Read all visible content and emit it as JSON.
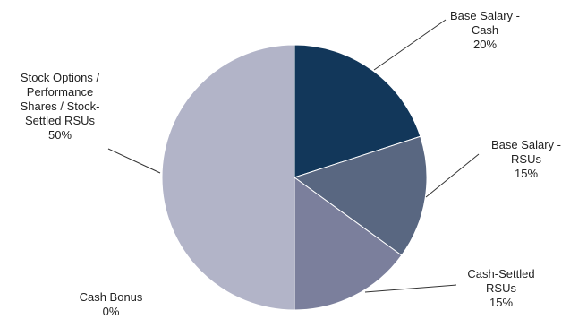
{
  "chart_data": {
    "type": "pie",
    "title": "",
    "slices": [
      {
        "label_lines": [
          "Base Salary -",
          "Cash"
        ],
        "percent_label": "20%",
        "value": 20,
        "color": "#12375a"
      },
      {
        "label_lines": [
          "Base Salary -",
          "RSUs"
        ],
        "percent_label": "15%",
        "value": 15,
        "color": "#596781"
      },
      {
        "label_lines": [
          "Cash-Settled",
          "RSUs"
        ],
        "percent_label": "15%",
        "value": 15,
        "color": "#7b7f9c"
      },
      {
        "label_lines": [
          "Cash Bonus"
        ],
        "percent_label": "0%",
        "value": 0,
        "color": "#9ea1b8"
      },
      {
        "label_lines": [
          "Stock Options /",
          "Performance",
          "Shares / Stock-",
          "Settled RSUs"
        ],
        "percent_label": "50%",
        "value": 50,
        "color": "#b2b4c8"
      }
    ],
    "start_angle": "12 o'clock",
    "direction": "clockwise",
    "legend": "none (labels placed around pie with leader lines)"
  }
}
